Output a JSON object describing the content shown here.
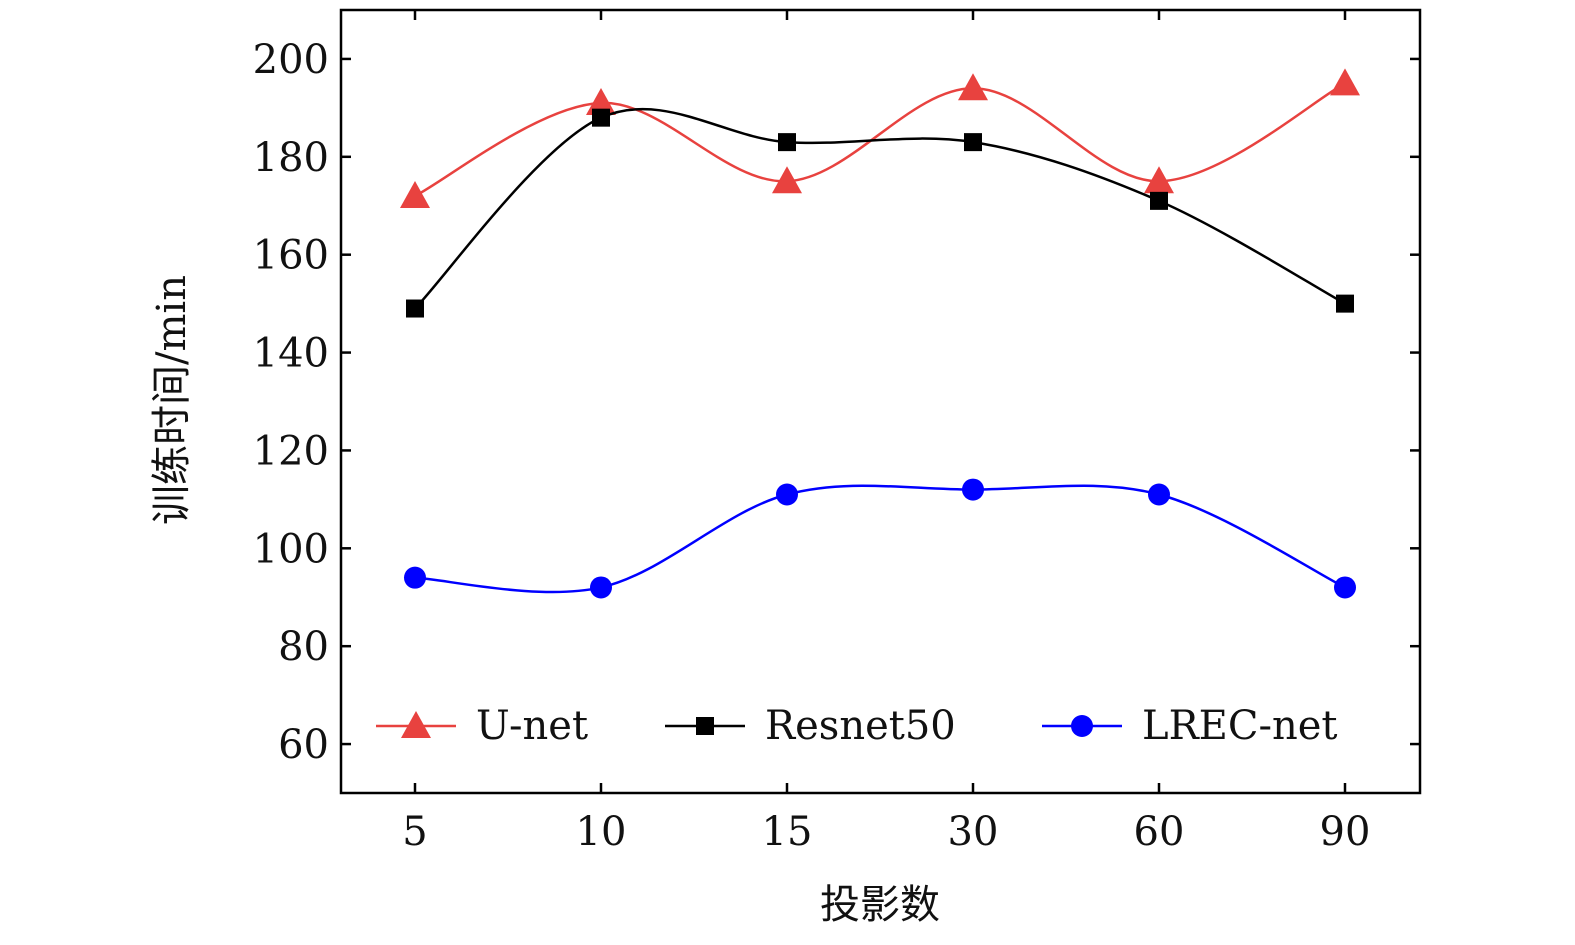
{
  "chart_data": {
    "type": "line",
    "title": "",
    "xlabel": "投影数",
    "ylabel": "训练时间/min",
    "categories": [
      "5",
      "10",
      "15",
      "30",
      "60",
      "90"
    ],
    "ylim": [
      50,
      210
    ],
    "yticks": [
      60,
      80,
      100,
      120,
      140,
      160,
      180,
      200
    ],
    "grid": false,
    "legend_position": "bottom-inside",
    "series": [
      {
        "name": "U-net",
        "marker": "triangle",
        "color": "#e8423f",
        "values": [
          172,
          191,
          175,
          194,
          175,
          195
        ]
      },
      {
        "name": "Resnet50",
        "marker": "square",
        "color": "#000000",
        "values": [
          149,
          188,
          183,
          183,
          171,
          150
        ]
      },
      {
        "name": "LREC-net",
        "marker": "circle",
        "color": "#0000ff",
        "values": [
          94,
          92,
          111,
          112,
          111,
          92
        ]
      }
    ]
  }
}
